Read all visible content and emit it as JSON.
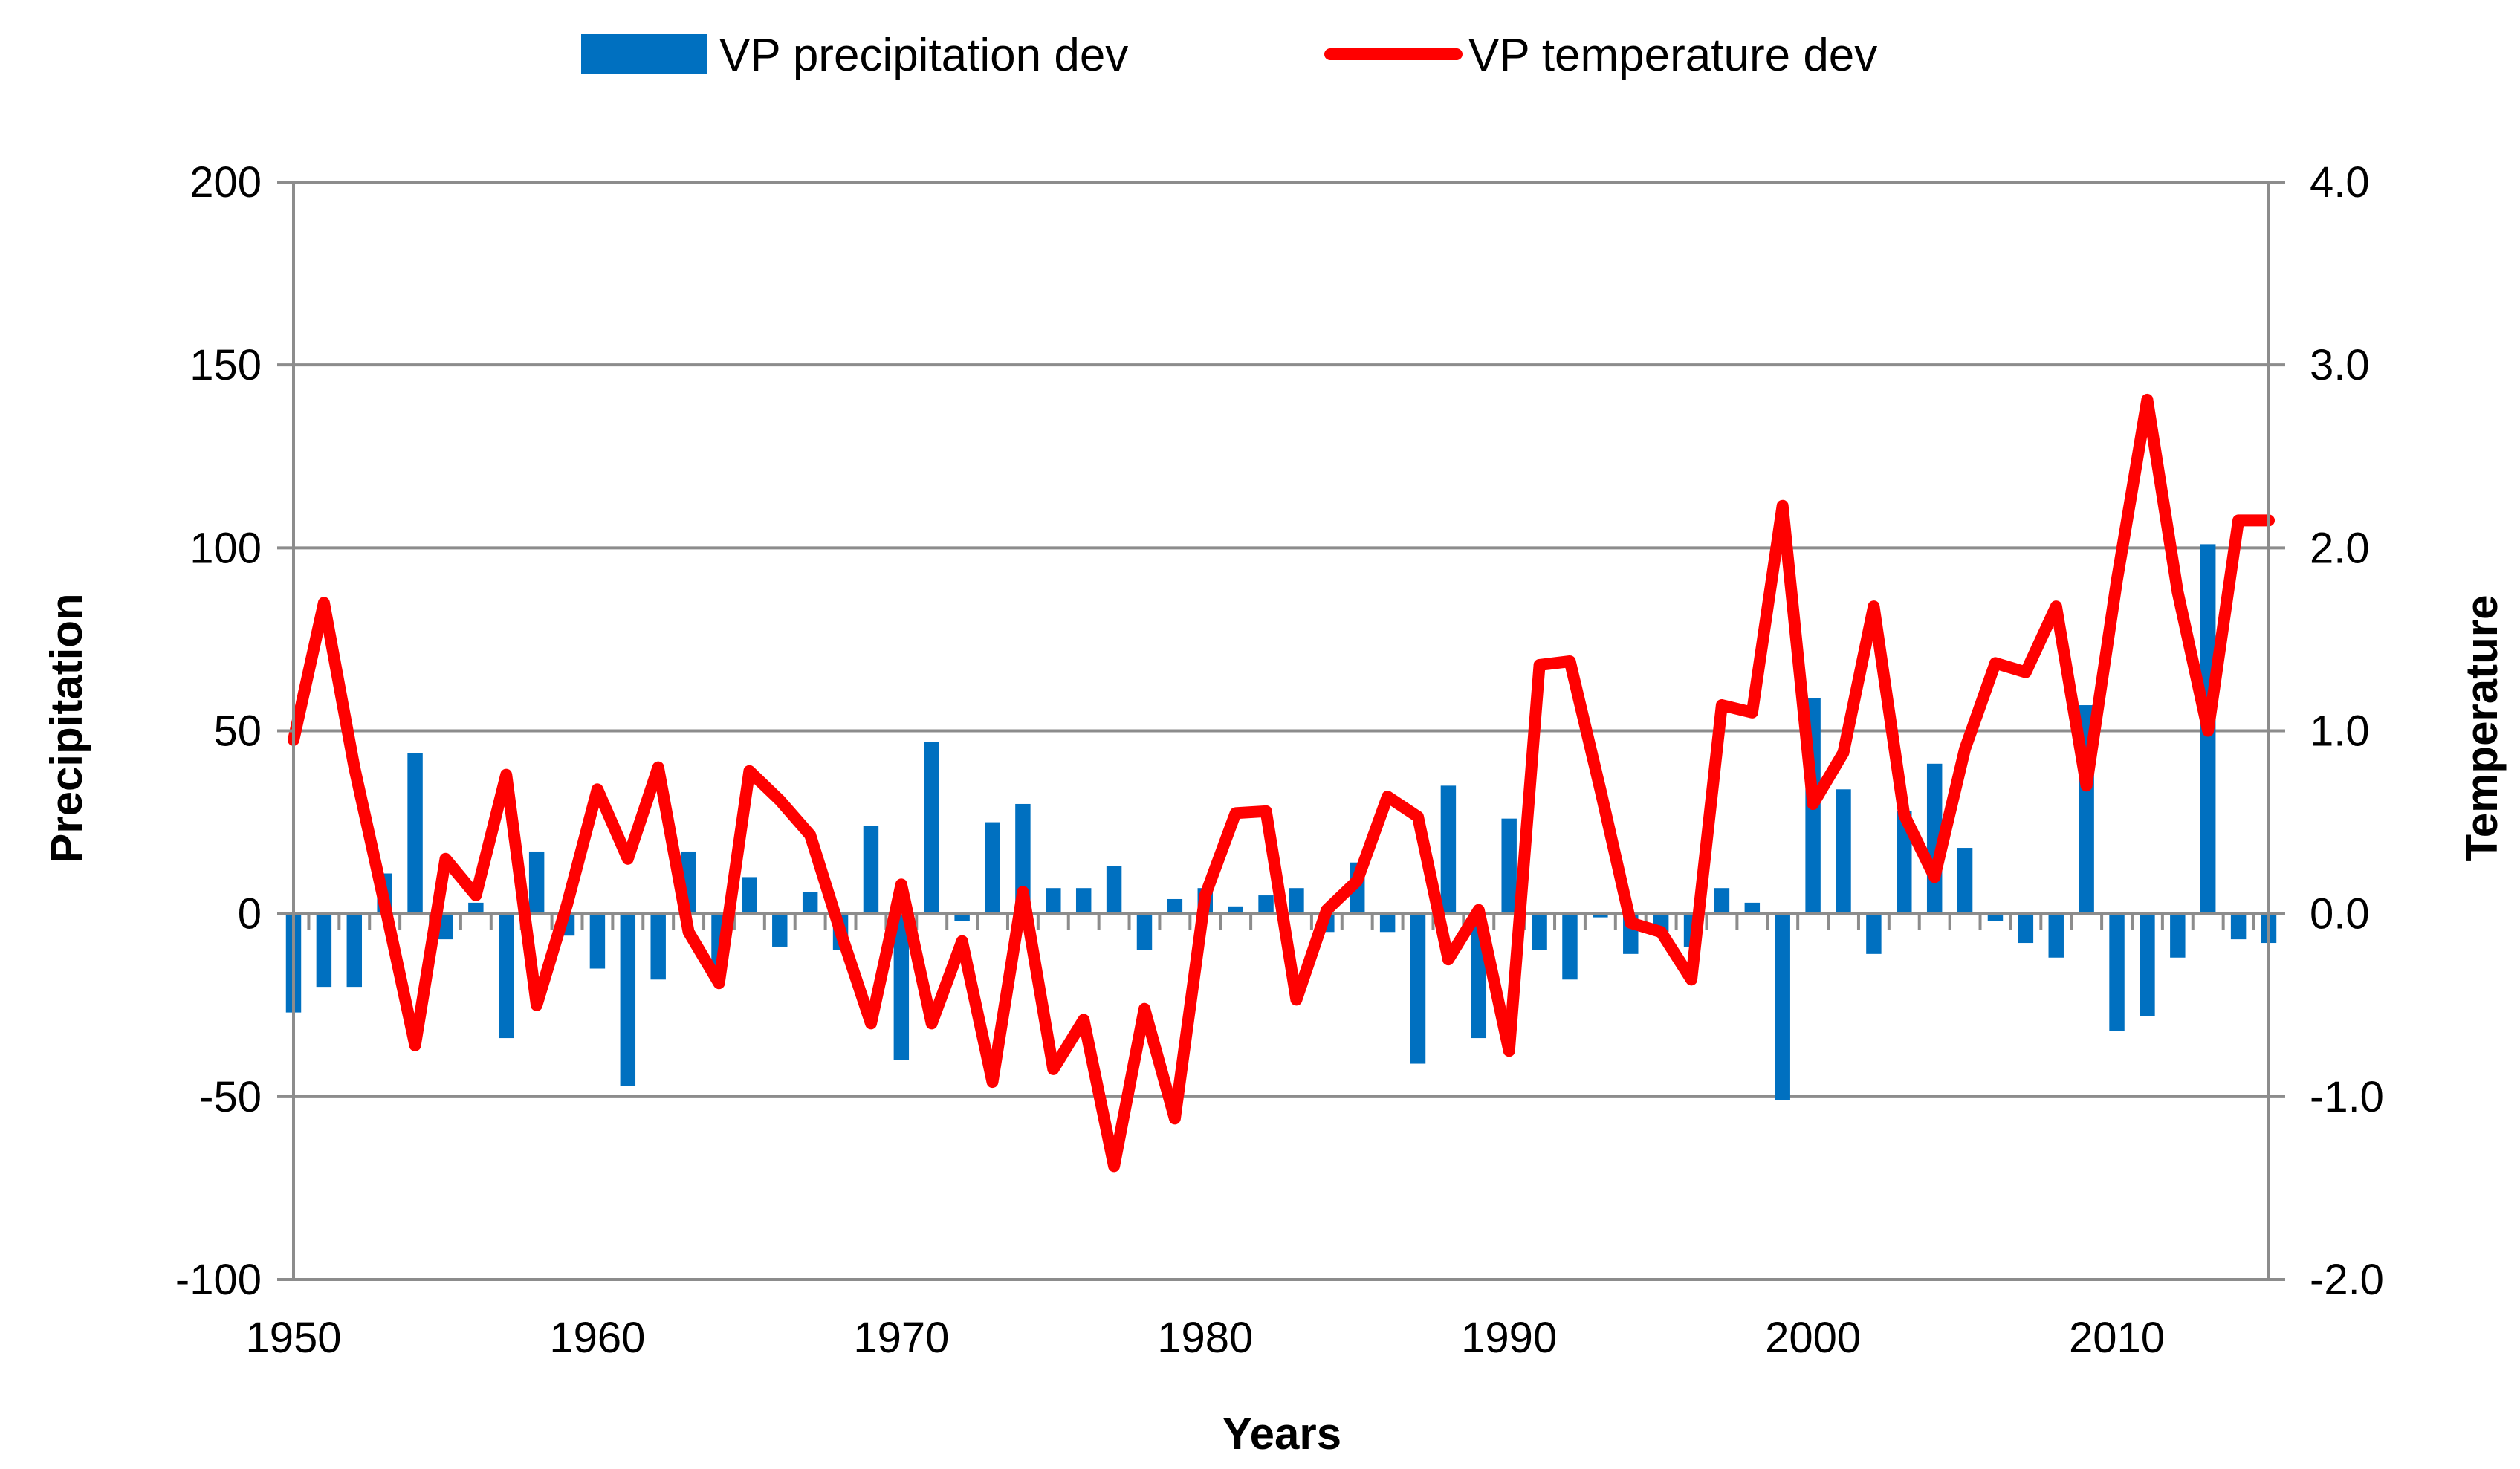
{
  "chart_data": {
    "type": "bar+line",
    "title": "",
    "xlabel": "Years",
    "ylabel_left": "Precipitation",
    "ylabel_right": "Temperature",
    "x_ticks": [
      1950,
      1960,
      1970,
      1980,
      1990,
      2000,
      2010
    ],
    "y_left_ticks": [
      "-100",
      "-50",
      "0",
      "50",
      "100",
      "150",
      "200"
    ],
    "y_right_ticks": [
      "-2.0",
      "-1.0",
      "0.0",
      "1.0",
      "2.0",
      "3.0",
      "4.0"
    ],
    "ylim_left": [
      -100,
      200
    ],
    "ylim_right": [
      -2,
      4
    ],
    "xlim": [
      1950,
      2015
    ],
    "grid": true,
    "legend_position": "top",
    "years": [
      1950,
      1951,
      1952,
      1953,
      1954,
      1955,
      1956,
      1957,
      1958,
      1959,
      1960,
      1961,
      1962,
      1963,
      1964,
      1965,
      1966,
      1967,
      1968,
      1969,
      1970,
      1971,
      1972,
      1973,
      1974,
      1975,
      1976,
      1977,
      1978,
      1979,
      1980,
      1981,
      1982,
      1983,
      1984,
      1985,
      1986,
      1987,
      1988,
      1989,
      1990,
      1991,
      1992,
      1993,
      1994,
      1995,
      1996,
      1997,
      1998,
      1999,
      2000,
      2001,
      2002,
      2003,
      2004,
      2005,
      2006,
      2007,
      2008,
      2009,
      2010,
      2011,
      2012,
      2013,
      2014,
      2015
    ],
    "series": [
      {
        "name": "VP precipitation dev",
        "type": "bar",
        "axis": "left",
        "color": "#0070C0",
        "values": [
          -27,
          -20,
          -20,
          11,
          44,
          -7,
          3,
          -34,
          17,
          -6,
          -15,
          -47,
          -18,
          17,
          -15,
          10,
          -9,
          6,
          -10,
          24,
          -40,
          47,
          -2,
          25,
          30,
          7,
          7,
          13,
          -10,
          4,
          7,
          2,
          5,
          7,
          -5,
          14,
          -5,
          -41,
          35,
          -34,
          26,
          -10,
          -18,
          -1,
          -11,
          -5,
          -9,
          7,
          3,
          -51,
          59,
          34,
          -11,
          28,
          41,
          18,
          -2,
          -8,
          -12,
          57,
          -32,
          -28,
          -12,
          101,
          -7,
          -8
        ]
      },
      {
        "name": "VP temperature dev",
        "type": "line",
        "axis": "right",
        "color": "#FF0000",
        "values": [
          0.95,
          1.7,
          0.8,
          0.05,
          -0.72,
          0.3,
          0.1,
          0.76,
          -0.5,
          0.05,
          0.68,
          0.3,
          0.8,
          -0.1,
          -0.38,
          0.78,
          0.62,
          0.43,
          -0.1,
          -0.6,
          0.16,
          -0.6,
          -0.15,
          -0.92,
          0.12,
          -0.85,
          -0.58,
          -1.38,
          -0.52,
          -1.12,
          0.1,
          0.55,
          0.56,
          -0.47,
          0.02,
          0.18,
          0.64,
          0.53,
          -0.25,
          0.02,
          -0.75,
          1.36,
          1.38,
          0.68,
          -0.05,
          -0.1,
          -0.36,
          1.14,
          1.1,
          2.23,
          0.6,
          0.88,
          1.68,
          0.54,
          0.2,
          0.9,
          1.37,
          1.32,
          1.68,
          0.7,
          1.82,
          2.81,
          1.76,
          1.0,
          2.15,
          2.15
        ]
      }
    ]
  }
}
